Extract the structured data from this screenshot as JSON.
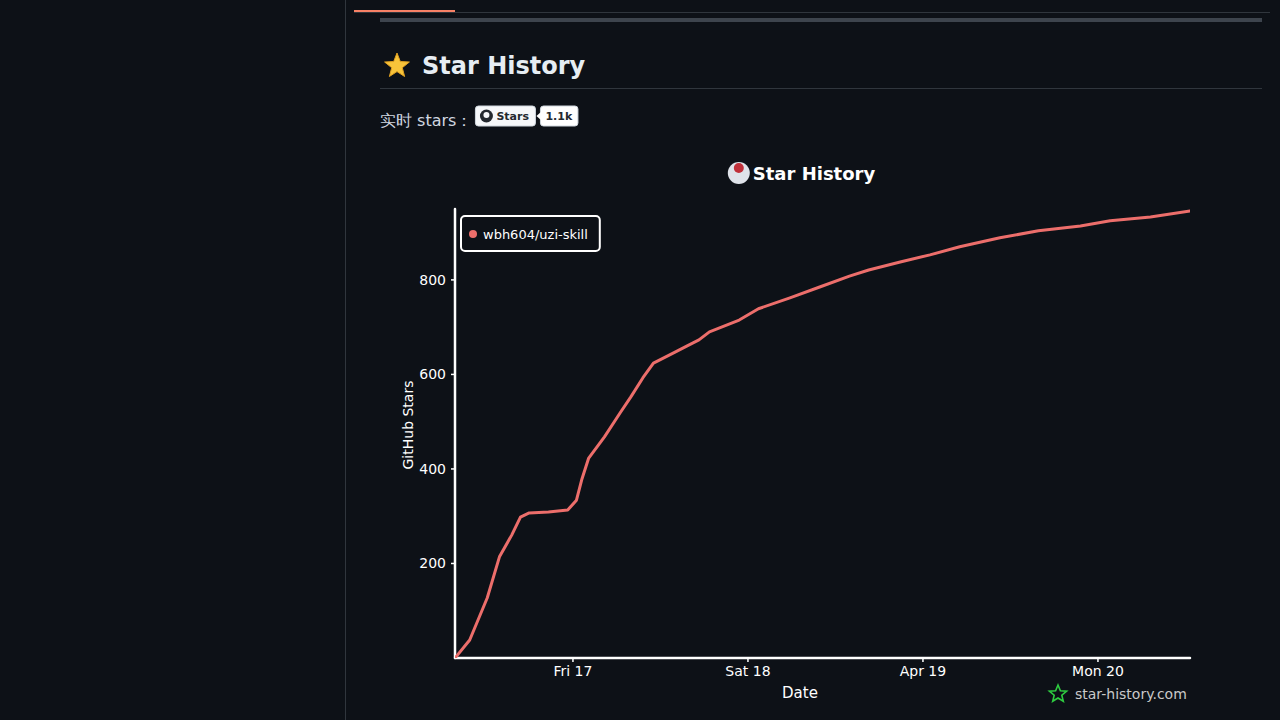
{
  "page": {
    "heading": "Star History",
    "badge_prefix": "实时 stars：",
    "badge_label": "Stars",
    "badge_count": "1.1k",
    "watermark": "star-history.com"
  },
  "chart_data": {
    "type": "line",
    "title": "Star History",
    "x_label": "Date",
    "y_label": "GitHub Stars",
    "x": [
      16.326,
      16.41,
      16.51,
      16.58,
      16.65,
      16.7,
      16.75,
      16.86,
      16.97,
      17.02,
      17.05,
      17.09,
      17.18,
      17.27,
      17.33,
      17.4,
      17.46,
      17.55,
      17.65,
      17.72,
      17.78,
      17.95,
      18.06,
      18.24,
      18.41,
      18.58,
      18.69,
      18.87,
      19.04,
      19.21,
      19.44,
      19.66,
      19.9,
      20.07,
      20.3,
      20.526
    ],
    "series": [
      {
        "name": "wbh604/uzi-skill",
        "color": "#ec6e6b",
        "values": [
          0,
          38,
          127,
          214,
          260,
          298,
          307,
          309,
          313,
          334,
          377,
          423,
          468,
          519,
          552,
          593,
          624,
          641,
          660,
          673,
          690,
          715,
          739,
          762,
          785,
          808,
          821,
          838,
          853,
          870,
          889,
          904,
          914,
          925,
          933,
          946
        ]
      }
    ],
    "xlim": [
      16.326,
      20.526
    ],
    "xticks": [
      {
        "value": 17,
        "label": "Fri 17"
      },
      {
        "value": 18,
        "label": "Sat 18"
      },
      {
        "value": 19,
        "label": "Apr 19"
      },
      {
        "value": 20,
        "label": "Mon 20"
      }
    ],
    "ylim": [
      0,
      950
    ],
    "yticks": [
      200,
      400,
      600,
      800
    ],
    "legend": "top-left",
    "grid": false
  }
}
